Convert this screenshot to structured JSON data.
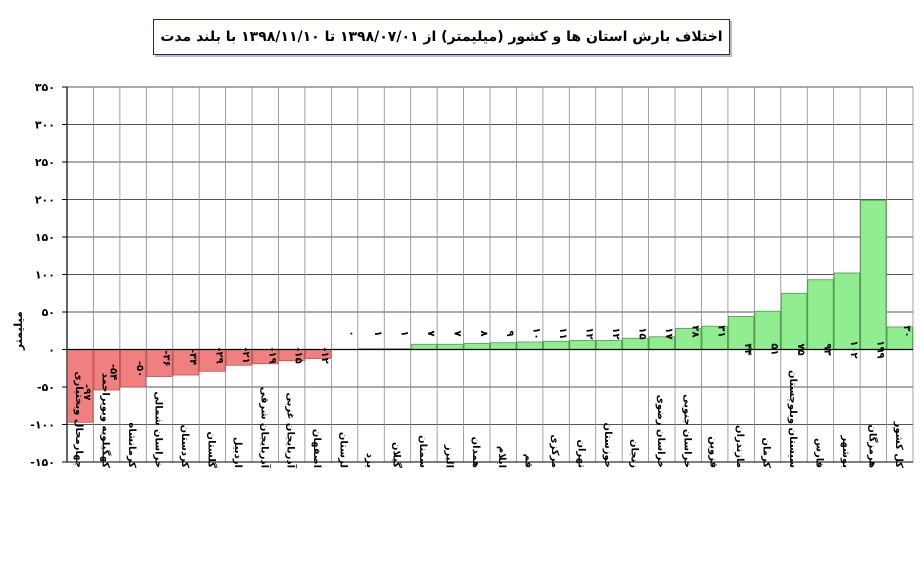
{
  "chart_data": {
    "type": "bar",
    "title": "اختلاف بارش استان ها و کشور (میلیمتر) از ۱۳۹۸/۰۷/۰۱ تا ۱۳۹۸/۱۱/۱۰ با بلند مدت",
    "ylabel": "میلیمتر",
    "xlabel": "",
    "ylim": [
      -150,
      350
    ],
    "yticks": [
      -150,
      -100,
      -50,
      0,
      50,
      100,
      150,
      200,
      250,
      300,
      350
    ],
    "ytick_labels": [
      "-۱۵۰",
      "-۱۰۰",
      "-۵۰",
      "۰",
      "۵۰",
      "۱۰۰",
      "۱۵۰",
      "۲۰۰",
      "۲۵۰",
      "۳۰۰",
      "۳۵۰"
    ],
    "grid": true,
    "negative_color": "#f08080",
    "positive_color": "#90ee90",
    "categories": [
      "چهارمحال وبختیاری",
      "کهگیلویه وبویراحمد",
      "کرمانشاه",
      "خراسان شمالی",
      "کردستان",
      "گلستان",
      "اردبیل",
      "آذربایجان شرقی",
      "آذربایجان غربی",
      "اصفهان",
      "لرستان",
      "یزد",
      "گیلان",
      "سمنان",
      "البرز",
      "همدان",
      "ایلام",
      "قم",
      "مرکزی",
      "تهران",
      "خوزستان",
      "زنجان",
      "خراسان رضوی",
      "خراسان جنوبی",
      "قزوین",
      "مازندران",
      "کرمان",
      "سیستان وبلوچستان",
      "فارس",
      "بوشهر",
      "هرمزگان",
      "کل کشور"
    ],
    "values": [
      -97,
      -54,
      -50,
      -36,
      -34,
      -29,
      -21,
      -19,
      -15,
      -12,
      0,
      1,
      1,
      7,
      7,
      8,
      9,
      10,
      11,
      12,
      12,
      15,
      17,
      28,
      31,
      44,
      51,
      75,
      93,
      102,
      199,
      30
    ],
    "value_labels": [
      "-۹۷",
      "-۵۴",
      "-۵۰",
      "-۳۶",
      "-۳۴",
      "-۲۹",
      "-۲۱",
      "-۱۹",
      "-۱۵",
      "-۱۲",
      "۰",
      "۱",
      "۱",
      "۷",
      "۷",
      "۸",
      "۹",
      "۱۰",
      "۱۱",
      "۱۲",
      "۱۲",
      "۱۵",
      "۱۷",
      "۲۸",
      "۳۱",
      "۴۴",
      "۵۱",
      "۷۵",
      "۹۳",
      "۱۰۲",
      "۱۹۹",
      "۳۰"
    ]
  }
}
